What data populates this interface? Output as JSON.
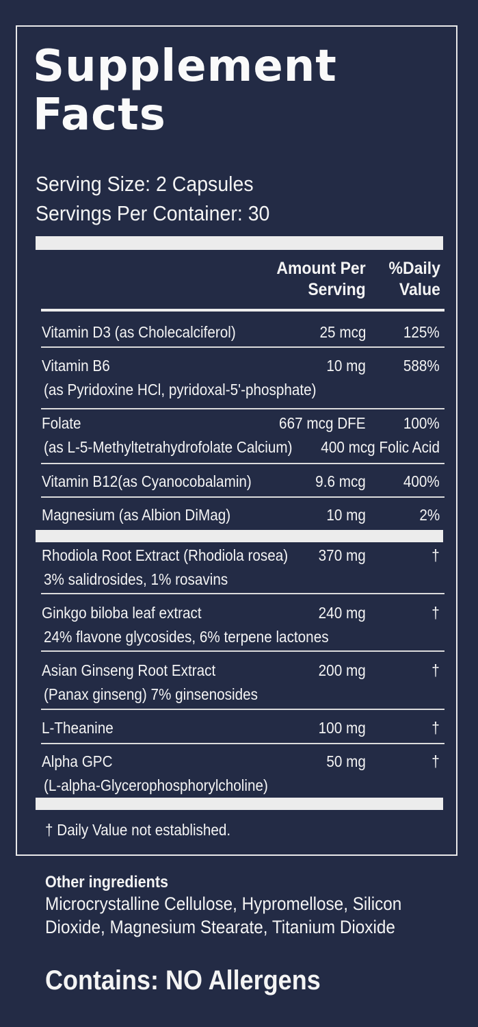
{
  "title": [
    "Supplement",
    "Facts"
  ],
  "serving_size": "Serving Size: 2 Capsules",
  "servings_per_container": "Servings Per Container: 30",
  "header": {
    "amount_line1": "Amount Per",
    "amount_line2": "Serving",
    "dv_line1": "%Daily",
    "dv_line2": "Value"
  },
  "rows": [
    {
      "name": "Vitamin D3 (as Cholecalciferol)",
      "sub": "",
      "amount": "25 mcg",
      "dv": "125%",
      "dv2": ""
    },
    {
      "name": "Vitamin B6",
      "sub": "(as Pyridoxine HCl, pyridoxal-5'-phosphate)",
      "amount": "10 mg",
      "dv": "588%",
      "dv2": ""
    },
    {
      "name": "Folate",
      "sub": "(as L-5-Methyltetrahydrofolate Calcium)",
      "amount": "667 mcg DFE",
      "dv": "100%",
      "dv2": "400 mcg Folic Acid"
    },
    {
      "name": "Vitamin B12(as Cyanocobalamin)",
      "sub": "",
      "amount": "9.6 mcg",
      "dv": "400%",
      "dv2": ""
    },
    {
      "name": "Magnesium (as Albion DiMag)",
      "sub": "",
      "amount": "10 mg",
      "dv": "2%",
      "dv2": ""
    },
    {
      "name": "Rhodiola Root Extract (Rhodiola rosea)",
      "sub": "3% salidrosides, 1% rosavins",
      "amount": "370 mg",
      "dv": "†",
      "dv2": ""
    },
    {
      "name": "Ginkgo biloba leaf extract",
      "sub": "24% flavone glycosides, 6% terpene lactones",
      "amount": "240 mg",
      "dv": "†",
      "dv2": ""
    },
    {
      "name": "Asian Ginseng Root Extract",
      "sub": "(Panax ginseng) 7% ginsenosides",
      "amount": "200 mg",
      "dv": "†",
      "dv2": ""
    },
    {
      "name": "L-Theanine",
      "sub": "",
      "amount": "100 mg",
      "dv": "†",
      "dv2": ""
    },
    {
      "name": "Alpha GPC",
      "sub": "(L-alpha-Glycerophosphorylcholine)",
      "amount": "50 mg",
      "dv": "†",
      "dv2": ""
    }
  ],
  "dv_note": "† Daily Value not established.",
  "other_ingredients_heading": "Other ingredients",
  "other_ingredients_text": "Microcrystalline Cellulose, Hypromellose, Silicon Dioxide, Magnesium Stearate, Titanium Dioxide",
  "allergen_statement": "Contains: NO Allergens",
  "colors": {
    "background": "#232b45",
    "text": "#f4f4f4",
    "rule": "#ececec"
  }
}
